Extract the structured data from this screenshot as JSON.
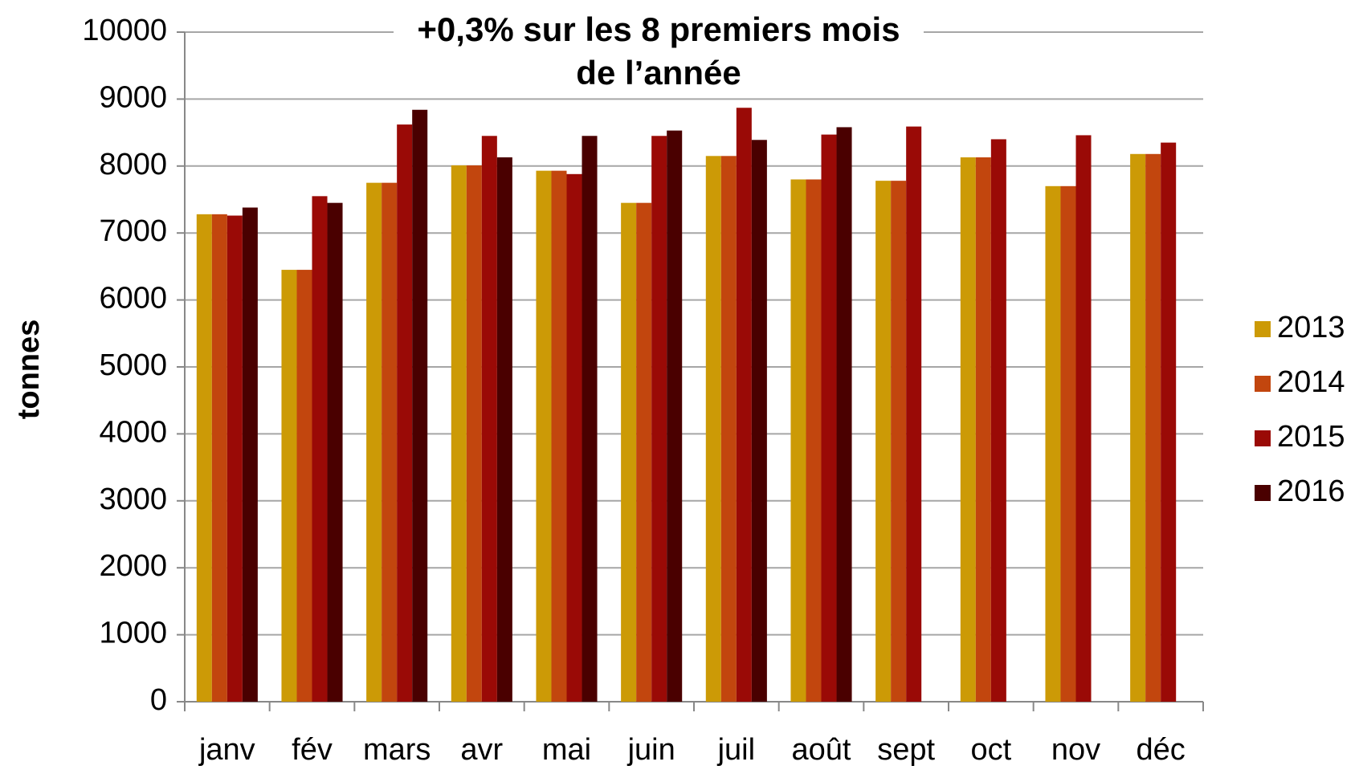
{
  "chart_data": {
    "type": "bar",
    "title": "+0,3% sur les 8 premiers mois de l’année",
    "y_label": "tonnes",
    "categories": [
      "janv",
      "fév",
      "mars",
      "avr",
      "mai",
      "juin",
      "juil",
      "août",
      "sept",
      "oct",
      "nov",
      "déc"
    ],
    "series": [
      {
        "name": "2013",
        "color": "#cc9a06",
        "values": [
          7280,
          6450,
          7750,
          8010,
          7930,
          7450,
          8150,
          7800,
          7780,
          8130,
          7700,
          8180
        ]
      },
      {
        "name": "2014",
        "color": "#c2460e",
        "values": [
          7280,
          6450,
          7750,
          8010,
          7930,
          7450,
          8150,
          7800,
          7780,
          8130,
          7700,
          8180
        ]
      },
      {
        "name": "2015",
        "color": "#9a0a06",
        "values": [
          7260,
          7550,
          8620,
          8450,
          7880,
          8450,
          8870,
          8470,
          8590,
          8400,
          8460,
          8350
        ]
      },
      {
        "name": "2016",
        "color": "#4a0000",
        "values": [
          7380,
          7450,
          8840,
          8130,
          8450,
          8530,
          8390,
          8580,
          null,
          null,
          null,
          null
        ]
      }
    ],
    "ylim": [
      0,
      10000
    ],
    "yticks": [
      0,
      1000,
      2000,
      3000,
      4000,
      5000,
      6000,
      7000,
      8000,
      9000,
      10000
    ],
    "grid": true,
    "legend": "right"
  }
}
